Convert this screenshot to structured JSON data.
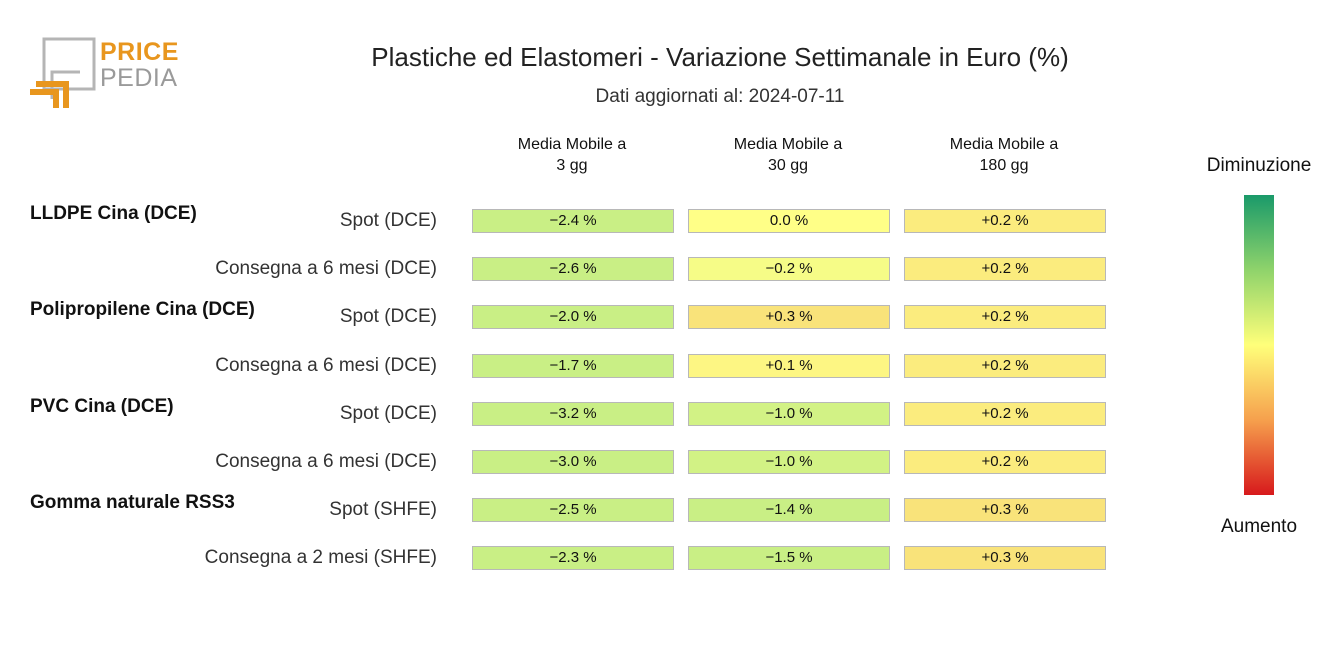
{
  "logo": {
    "line1": "PRICE",
    "line2": "PEDIA",
    "orange": "#e8961e",
    "gray": "#9a9a9a"
  },
  "title": "Plastiche ed Elastomeri - Variazione Settimanale in Euro (%)",
  "subtitle": "Dati aggiornati al: 2024-07-11",
  "legend": {
    "top": "Diminuzione",
    "bottom": "Aumento",
    "top_color": "#1a9a6a",
    "mid_color": "#ffff7a",
    "bottom_color": "#d7191c"
  },
  "chart_data": {
    "type": "table",
    "columns": [
      "Media Mobile a\n3 gg",
      "Media Mobile a\n30 gg",
      "Media Mobile a\n180 gg"
    ],
    "groups": [
      {
        "name": "LLDPE Cina (DCE)",
        "rows": [
          {
            "label": "Spot (DCE)",
            "values": [
              -2.4,
              0.0,
              0.2
            ],
            "display": [
              "−2.4 %",
              "0.0 %",
              "+0.2 %"
            ]
          },
          {
            "label": "Consegna a 6 mesi (DCE)",
            "values": [
              -2.6,
              -0.2,
              0.2
            ],
            "display": [
              "−2.6 %",
              "−0.2 %",
              "+0.2 %"
            ]
          }
        ]
      },
      {
        "name": "Polipropilene Cina (DCE)",
        "rows": [
          {
            "label": "Spot (DCE)",
            "values": [
              -2.0,
              0.3,
              0.2
            ],
            "display": [
              "−2.0 %",
              "+0.3 %",
              "+0.2 %"
            ]
          },
          {
            "label": "Consegna a 6 mesi (DCE)",
            "values": [
              -1.7,
              0.1,
              0.2
            ],
            "display": [
              "−1.7 %",
              "+0.1 %",
              "+0.2 %"
            ]
          }
        ]
      },
      {
        "name": "PVC Cina (DCE)",
        "rows": [
          {
            "label": "Spot (DCE)",
            "values": [
              -3.2,
              -1.0,
              0.2
            ],
            "display": [
              "−3.2 %",
              "−1.0 %",
              "+0.2 %"
            ]
          },
          {
            "label": "Consegna a 6 mesi (DCE)",
            "values": [
              -3.0,
              -1.0,
              0.2
            ],
            "display": [
              "−3.0 %",
              "−1.0 %",
              "+0.2 %"
            ]
          }
        ]
      },
      {
        "name": "Gomma naturale RSS3",
        "rows": [
          {
            "label": "Spot (SHFE)",
            "values": [
              -2.5,
              -1.4,
              0.3
            ],
            "display": [
              "−2.5 %",
              "−1.4 %",
              "+0.3 %"
            ]
          },
          {
            "label": "Consegna a 2 mesi (SHFE)",
            "values": [
              -2.3,
              -1.5,
              0.3
            ],
            "display": [
              "−2.3 %",
              "−1.5 %",
              "+0.3 %"
            ]
          }
        ]
      }
    ]
  }
}
